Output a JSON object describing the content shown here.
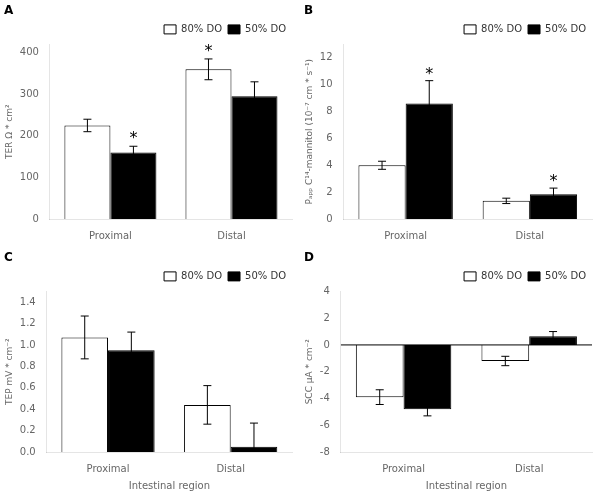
{
  "chart_data": [
    {
      "type": "bar",
      "title": "A",
      "ylabel": "TER Ω * cm²",
      "categories": [
        "Proximal",
        "Distal"
      ],
      "series": [
        {
          "name": "80% DO",
          "color": "white",
          "values": [
            225,
            360
          ],
          "errors": [
            15,
            25
          ]
        },
        {
          "name": "50% DO",
          "color": "black",
          "values": [
            160,
            295
          ],
          "errors": [
            15,
            35
          ]
        }
      ],
      "ylim": [
        0,
        420
      ],
      "yticks": [
        0,
        100,
        200,
        300,
        400
      ],
      "grid": false,
      "legend": "upper right",
      "annotations": [
        {
          "text": "*",
          "x": "Proximal",
          "series": "50% DO",
          "y": 182
        },
        {
          "text": "*",
          "x": "Distal",
          "series": "80% DO",
          "y": 392
        }
      ]
    },
    {
      "type": "bar",
      "title": "B",
      "ylabel": "Pₐₚₚ C¹⁴-mannitol (10⁻⁷ cm * s⁻¹)",
      "categories": [
        "Proximal",
        "Distal"
      ],
      "series": [
        {
          "name": "80% DO",
          "color": "white",
          "values": [
            4.0,
            1.35
          ],
          "errors": [
            0.3,
            0.2
          ]
        },
        {
          "name": "50% DO",
          "color": "black",
          "values": [
            8.6,
            1.85
          ],
          "errors": [
            1.7,
            0.45
          ]
        }
      ],
      "ylim": [
        0,
        13
      ],
      "yticks": [
        0,
        2,
        4,
        6,
        8,
        10,
        12
      ],
      "grid": false,
      "legend": "upper right",
      "annotations": [
        {
          "text": "*",
          "x": "Proximal",
          "series": "50% DO",
          "y": 10.45
        },
        {
          "text": "*",
          "x": "Distal",
          "series": "50% DO",
          "y": 2.45
        }
      ]
    },
    {
      "type": "bar",
      "title": "C",
      "ylabel": "TEP mV * cm⁻²",
      "xlabel": "Intestinal region",
      "categories": [
        "Proximal",
        "Distal"
      ],
      "series": [
        {
          "name": "80% DO",
          "color": "white",
          "values": [
            1.07,
            0.44
          ],
          "errors": [
            0.2,
            0.18
          ]
        },
        {
          "name": "50% DO",
          "color": "black",
          "values": [
            0.95,
            0.05
          ],
          "errors": [
            0.17,
            0.22
          ]
        }
      ],
      "ylim": [
        0,
        1.5
      ],
      "yticks": [
        {
          "value": 0,
          "label": "0.0"
        },
        0.2,
        0.4,
        0.6,
        0.8,
        {
          "value": 1,
          "label": "1.0"
        },
        1.2,
        1.4
      ],
      "grid": false,
      "legend": "upper right"
    },
    {
      "type": "bar",
      "title": "D",
      "ylabel": "SCC μA * cm⁻²",
      "xlabel": "Intestinal region",
      "categories": [
        "Proximal",
        "Distal"
      ],
      "series": [
        {
          "name": "80% DO",
          "color": "white",
          "values": [
            -3.9,
            -1.2
          ],
          "errors": [
            0.55,
            0.35
          ]
        },
        {
          "name": "50% DO",
          "color": "black",
          "values": [
            -4.8,
            0.65
          ],
          "errors": [
            0.5,
            0.35
          ]
        }
      ],
      "ylim": [
        -8,
        4
      ],
      "yticks": [
        -8,
        -6,
        -4,
        -2,
        0,
        2,
        4
      ],
      "grid": false,
      "legend": "upper right",
      "annotations": [
        {
          "type": "hline",
          "y": 0
        }
      ]
    }
  ]
}
